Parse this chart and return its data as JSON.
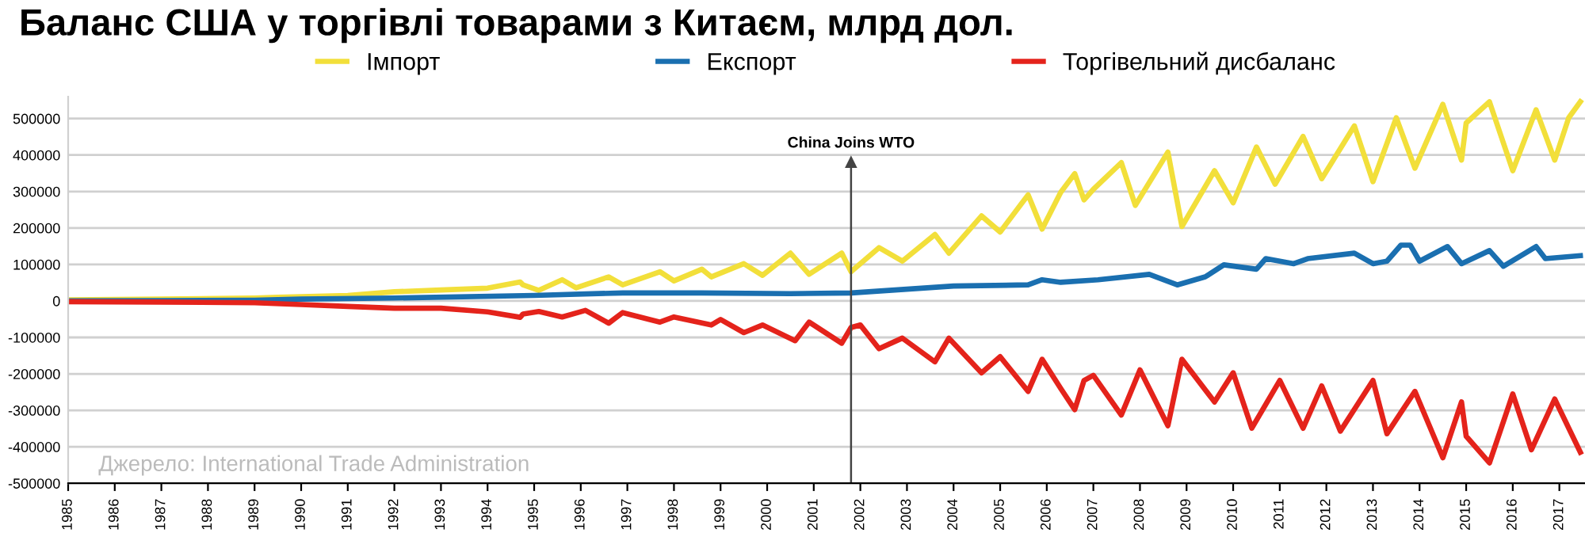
{
  "chart_data": {
    "type": "line",
    "title": "Баланс США у торгівлі товарами з Китаєм, млрд дол.",
    "xlim": [
      1985,
      2017.55
    ],
    "xticks": [
      1985,
      1986,
      1987,
      1988,
      1989,
      1990,
      1991,
      1992,
      1993,
      1994,
      1995,
      1996,
      1997,
      1998,
      1999,
      2000,
      2001,
      2002,
      2003,
      2004,
      2005,
      2006,
      2007,
      2008,
      2009,
      2010,
      2011,
      2012,
      2013,
      2014,
      2015,
      2016,
      2017
    ],
    "ylim": [
      -500000,
      560000
    ],
    "yticks": [
      -500000,
      -400000,
      -300000,
      -200000,
      -100000,
      0,
      100000,
      200000,
      300000,
      400000,
      500000
    ],
    "grid": "y",
    "legend": "top",
    "line_style": "solid",
    "marker": "none",
    "annotations": [
      "Джерело: International Trade Administration"
    ],
    "ref_lines": [
      {
        "axis": "x",
        "value": 2001.8,
        "label": "China Joins WTO",
        "color": "#444444"
      }
    ],
    "series": [
      {
        "name": "Імпорт",
        "color": "#f2df3a",
        "x": [
          1985,
          1987,
          1989,
          1989.5,
          1991,
          1992,
          1993,
          1994,
          1994.7,
          1994.76,
          1995.1,
          1995.6,
          1995.9,
          1996.6,
          1996.9,
          1997.7,
          1998.0,
          1998.6,
          1998.8,
          1999.5,
          1999.9,
          2000.5,
          2000.9,
          2001.6,
          2001.8,
          2002.4,
          2002.9,
          2003.6,
          2003.9,
          2004.6,
          2005.0,
          2005.6,
          2005.9,
          2006.3,
          2006.6,
          2006.8,
          2007.0,
          2007.6,
          2007.9,
          2008.6,
          2008.9,
          2009.6,
          2010.0,
          2010.5,
          2010.9,
          2011.5,
          2011.9,
          2012.6,
          2013.0,
          2013.5,
          2013.9,
          2014.5,
          2014.9,
          2015.0,
          2015.5,
          2016.0,
          2016.5,
          2016.9,
          2017.2,
          2017.45
        ],
        "values": [
          3000,
          5000,
          8000,
          10000,
          15000,
          25000,
          30000,
          35000,
          52000,
          44000,
          29000,
          58000,
          36000,
          66000,
          44000,
          80000,
          55000,
          87000,
          66000,
          102000,
          70000,
          131000,
          73000,
          131000,
          80000,
          146000,
          109000,
          182000,
          131000,
          233000,
          189000,
          291000,
          197000,
          298000,
          349000,
          277000,
          306000,
          379000,
          262000,
          408000,
          204000,
          357000,
          269000,
          422000,
          320000,
          451000,
          335000,
          480000,
          327000,
          502000,
          364000,
          539000,
          386000,
          488000,
          546000,
          357000,
          524000,
          386000,
          502000,
          546000
        ]
      },
      {
        "name": "Експорт",
        "color": "#1a6fb0",
        "x": [
          1985,
          1987,
          1989,
          1990,
          1992,
          1995,
          1996.9,
          1998.6,
          2000.5,
          2001.8,
          2004.0,
          2005.6,
          2005.9,
          2006.3,
          2007.1,
          2008.2,
          2008.8,
          2009.4,
          2009.8,
          2010.5,
          2010.7,
          2011.3,
          2011.6,
          2012.6,
          2013.0,
          2013.3,
          2013.6,
          2013.8,
          2014.0,
          2014.6,
          2014.9,
          2015.5,
          2015.8,
          2016.5,
          2016.7,
          2017.45
        ],
        "values": [
          0,
          1000,
          2000,
          5000,
          8000,
          15000,
          22000,
          22000,
          20000,
          22000,
          41000,
          44000,
          58000,
          51000,
          58000,
          73000,
          44000,
          66000,
          99000,
          87000,
          116000,
          102000,
          116000,
          131000,
          102000,
          109000,
          153000,
          153000,
          109000,
          149000,
          102000,
          138000,
          95000,
          149000,
          116000,
          124000
        ]
      },
      {
        "name": "Торгівельний дисбаланс",
        "color": "#e4231b",
        "x": [
          1985,
          1987,
          1989,
          1990,
          1991,
          1992,
          1993,
          1994,
          1994.7,
          1994.76,
          1995.1,
          1995.6,
          1996.1,
          1996.6,
          1996.9,
          1997.7,
          1998.0,
          1998.8,
          1999.0,
          1999.5,
          1999.9,
          2000.6,
          2000.9,
          2001.6,
          2001.8,
          2002.0,
          2002.4,
          2002.9,
          2003.6,
          2003.9,
          2004.6,
          2005.0,
          2005.6,
          2005.9,
          2006.3,
          2006.6,
          2006.8,
          2007.0,
          2007.6,
          2008.0,
          2008.6,
          2008.9,
          2009.6,
          2010.0,
          2010.4,
          2011.0,
          2011.5,
          2011.9,
          2012.3,
          2013.0,
          2013.3,
          2013.9,
          2014.5,
          2014.9,
          2015.0,
          2015.5,
          2016.0,
          2016.4,
          2016.9,
          2017.45
        ],
        "values": [
          -2000,
          -3000,
          -5000,
          -10000,
          -15000,
          -20000,
          -20000,
          -30000,
          -45000,
          -36000,
          -29000,
          -44000,
          -26000,
          -61000,
          -32000,
          -58000,
          -44000,
          -66000,
          -51000,
          -87000,
          -66000,
          -109000,
          -58000,
          -116000,
          -73000,
          -66000,
          -131000,
          -102000,
          -167000,
          -102000,
          -197000,
          -153000,
          -248000,
          -160000,
          -240000,
          -298000,
          -218000,
          -204000,
          -313000,
          -189000,
          -342000,
          -160000,
          -277000,
          -197000,
          -349000,
          -218000,
          -349000,
          -233000,
          -357000,
          -218000,
          -364000,
          -248000,
          -430000,
          -277000,
          -371000,
          -444000,
          -255000,
          -408000,
          -269000,
          -415000
        ]
      }
    ]
  }
}
